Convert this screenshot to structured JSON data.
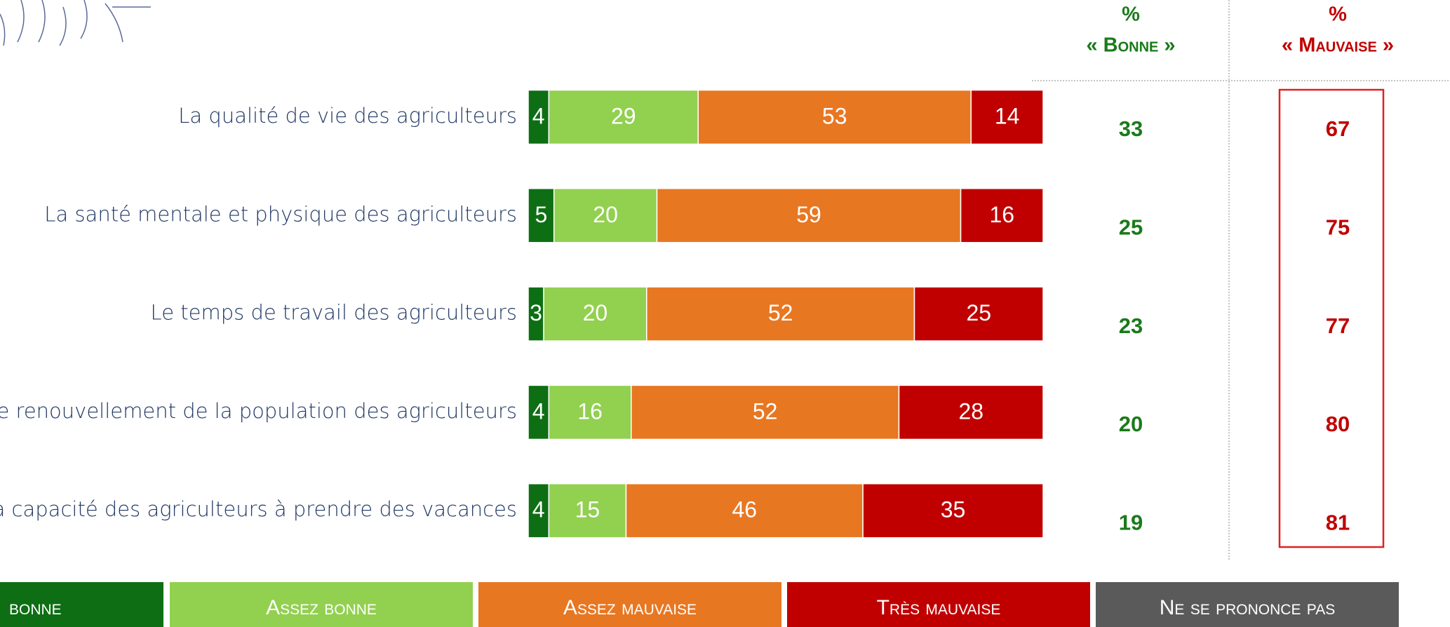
{
  "chart_data": {
    "type": "stacked-barh",
    "categories": [
      "La qualité de vie des agriculteurs",
      "La santé mentale et physique des agriculteurs",
      "Le temps de travail des agriculteurs",
      "Le renouvellement de la population des agriculteurs",
      "La capacité des agriculteurs à prendre des vacances"
    ],
    "series": [
      {
        "name": "bonne",
        "color": "#0e6e14",
        "values": [
          4,
          5,
          3,
          4,
          4
        ]
      },
      {
        "name": "Assez bonne",
        "color": "#92d050",
        "values": [
          29,
          20,
          20,
          16,
          15
        ]
      },
      {
        "name": "Assez mauvaise",
        "color": "#e87722",
        "values": [
          53,
          59,
          52,
          52,
          46
        ]
      },
      {
        "name": "Très mauvaise",
        "color": "#c00000",
        "values": [
          14,
          16,
          25,
          28,
          35
        ]
      },
      {
        "name": "Ne se prononce pas",
        "color": "#5a5a5a",
        "values": [
          null,
          null,
          null,
          null,
          null
        ]
      }
    ],
    "xlim": [
      0,
      100
    ],
    "columns": [
      {
        "header": [
          "%",
          "« Bonne »"
        ],
        "color": "#1a7a1a",
        "values": [
          33,
          25,
          23,
          20,
          19
        ]
      },
      {
        "header": [
          "%",
          "« Mauvaise »"
        ],
        "color": "#c00000",
        "values": [
          67,
          75,
          77,
          80,
          81
        ]
      }
    ]
  }
}
